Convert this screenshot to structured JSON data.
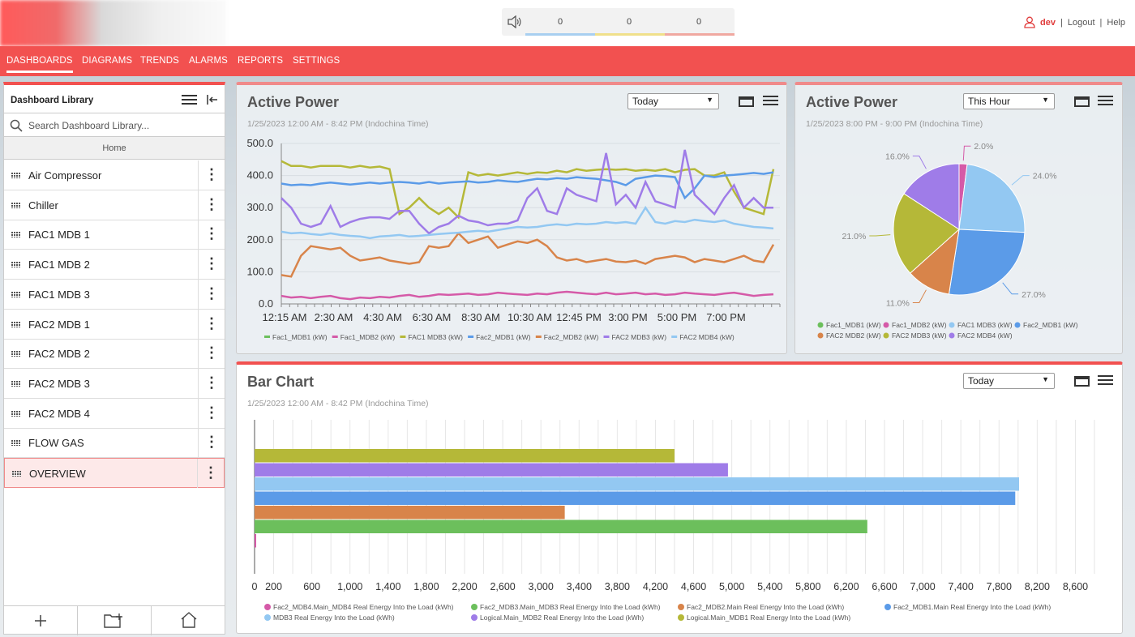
{
  "topbar": {
    "counters": [
      "0",
      "0",
      "0"
    ],
    "counter_colors": [
      "#a8cff0",
      "#f0e08a",
      "#f0a8a0"
    ],
    "user": "dev",
    "logout": "Logout",
    "help": "Help",
    "separator": "|"
  },
  "nav": [
    {
      "label": "DASHBOARDS",
      "active": true
    },
    {
      "label": "DIAGRAMS"
    },
    {
      "label": "TRENDS"
    },
    {
      "label": "ALARMS"
    },
    {
      "label": "REPORTS"
    },
    {
      "label": "SETTINGS"
    }
  ],
  "sidebar": {
    "title": "Dashboard Library",
    "search_placeholder": "Search Dashboard Library...",
    "home": "Home",
    "items": [
      {
        "label": "Air Compressor"
      },
      {
        "label": "Chiller"
      },
      {
        "label": "FAC1 MDB 1"
      },
      {
        "label": "FAC1 MDB 2"
      },
      {
        "label": "FAC1 MDB 3"
      },
      {
        "label": "FAC2 MDB 1"
      },
      {
        "label": "FAC2 MDB 2"
      },
      {
        "label": "FAC2 MDB 3"
      },
      {
        "label": "FAC2 MDB 4"
      },
      {
        "label": "FLOW GAS"
      },
      {
        "label": "OVERVIEW",
        "selected": true
      }
    ]
  },
  "line_panel": {
    "title": "Active Power",
    "subtitle": "1/25/2023 12:00 AM - 8:42 PM (Indochina Time)",
    "range": "Today"
  },
  "pie_panel": {
    "title": "Active Power",
    "subtitle": "1/25/2023 8:00 PM - 9:00 PM (Indochina Time)",
    "range": "This Hour"
  },
  "bar_panel": {
    "title": "Bar Chart",
    "subtitle": "1/25/2023 12:00 AM - 8:42 PM (Indochina Time)",
    "range": "Today"
  },
  "chart_data": [
    {
      "type": "line",
      "x_ticks": [
        "12:15 AM",
        "2:30 AM",
        "4:30 AM",
        "6:30 AM",
        "8:30 AM",
        "10:30 AM",
        "12:45 PM",
        "3:00 PM",
        "5:00 PM",
        "7:00 PM"
      ],
      "y_ticks": [
        "500.0",
        "400.0",
        "300.0",
        "200.0",
        "100.0",
        "0.0"
      ],
      "ylim": [
        0,
        500
      ],
      "legend_placement": "bottom",
      "series": [
        {
          "name": "Fac1_MDB1 (kW)",
          "color": "#6cbf5c",
          "values": []
        },
        {
          "name": "Fac1_MDB2 (kW)",
          "color": "#d55aa8",
          "values": [
            25,
            20,
            22,
            18,
            22,
            25,
            18,
            15,
            20,
            18,
            22,
            20,
            25,
            28,
            22,
            25,
            30,
            28,
            30,
            32,
            28,
            30,
            35,
            32,
            30,
            28,
            32,
            30,
            35,
            38,
            35,
            32,
            30,
            35,
            30,
            32,
            35,
            30,
            32,
            28,
            30,
            35,
            32,
            30,
            28,
            32,
            35,
            30,
            25,
            28,
            30
          ]
        },
        {
          "name": "FAC1 MDB3 (kW)",
          "color": "#b5b838",
          "values": [
            445,
            430,
            430,
            425,
            430,
            430,
            430,
            425,
            430,
            425,
            428,
            420,
            280,
            300,
            330,
            300,
            280,
            300,
            270,
            410,
            400,
            405,
            400,
            405,
            410,
            405,
            410,
            408,
            415,
            410,
            420,
            415,
            418,
            420,
            418,
            420,
            415,
            418,
            415,
            420,
            410,
            418,
            420,
            400,
            400,
            410,
            350,
            300,
            290,
            280,
            420
          ]
        },
        {
          "name": "Fac2_MDB1 (kW)",
          "color": "#5b9be8",
          "values": [
            375,
            370,
            372,
            370,
            375,
            378,
            375,
            372,
            375,
            378,
            375,
            378,
            380,
            378,
            375,
            380,
            375,
            378,
            380,
            382,
            378,
            380,
            385,
            382,
            380,
            385,
            390,
            388,
            392,
            390,
            395,
            392,
            390,
            385,
            380,
            370,
            390,
            395,
            400,
            398,
            395,
            330,
            360,
            400,
            395,
            400,
            402,
            405,
            408,
            405,
            410
          ]
        },
        {
          "name": "Fac2_MDB2 (kW)",
          "color": "#d8844a",
          "values": [
            90,
            85,
            150,
            180,
            175,
            170,
            175,
            150,
            135,
            140,
            145,
            135,
            130,
            125,
            130,
            180,
            175,
            180,
            220,
            190,
            200,
            210,
            175,
            185,
            195,
            190,
            200,
            180,
            145,
            135,
            140,
            130,
            135,
            140,
            132,
            130,
            135,
            125,
            140,
            145,
            150,
            145,
            130,
            140,
            135,
            130,
            140,
            150,
            135,
            130,
            185
          ]
        },
        {
          "name": "FAC2 MDB3 (kW)",
          "color": "#9f7ce8",
          "values": [
            330,
            300,
            250,
            240,
            250,
            305,
            240,
            255,
            265,
            270,
            270,
            265,
            290,
            290,
            250,
            220,
            240,
            250,
            275,
            260,
            255,
            245,
            250,
            250,
            260,
            330,
            360,
            290,
            280,
            360,
            340,
            330,
            320,
            470,
            310,
            340,
            300,
            380,
            320,
            310,
            300,
            480,
            340,
            310,
            280,
            330,
            370,
            300,
            330,
            300,
            300
          ]
        },
        {
          "name": "FAC2 MDB4 (kW)",
          "color": "#93c8f2",
          "values": [
            225,
            220,
            222,
            218,
            215,
            220,
            215,
            212,
            210,
            205,
            210,
            212,
            215,
            210,
            212,
            215,
            218,
            220,
            222,
            225,
            228,
            225,
            230,
            235,
            240,
            238,
            240,
            245,
            248,
            245,
            250,
            248,
            250,
            255,
            252,
            255,
            250,
            300,
            255,
            250,
            258,
            255,
            262,
            258,
            255,
            260,
            250,
            245,
            240,
            238,
            235
          ]
        }
      ]
    },
    {
      "type": "pie",
      "legend_placement": "bottom",
      "slices": [
        {
          "name": "Fac1_MDB1 (kW)",
          "value": 0,
          "label": "",
          "color": "#6cbf5c"
        },
        {
          "name": "Fac1_MDB2 (kW)",
          "value": 2.0,
          "label": "2.0%",
          "color": "#d55aa8"
        },
        {
          "name": "FAC1 MDB3 (kW)",
          "value": 24.0,
          "label": "24.0%",
          "color": "#93c8f2"
        },
        {
          "name": "Fac2_MDB1 (kW)",
          "value": 27.0,
          "label": "27.0%",
          "color": "#5b9be8"
        },
        {
          "name": "FAC2 MDB2 (kW)",
          "value": 11.0,
          "label": "11.0%",
          "color": "#d8844a"
        },
        {
          "name": "FAC2 MDB3 (kW)",
          "value": 21.0,
          "label": "21.0%",
          "color": "#b5b838"
        },
        {
          "name": "FAC2 MDB4 (kW)",
          "value": 16.0,
          "label": "16.0%",
          "color": "#9f7ce8"
        }
      ]
    },
    {
      "type": "bar",
      "orientation": "horizontal",
      "xlim": [
        0,
        8800
      ],
      "x_ticks": [
        "0",
        "200",
        "600",
        "1,000",
        "1,400",
        "1,800",
        "2,200",
        "2,600",
        "3,000",
        "3,400",
        "3,800",
        "4,200",
        "4,600",
        "5,000",
        "5,400",
        "5,800",
        "6,200",
        "6,600",
        "7,000",
        "7,400",
        "7,800",
        "8,200",
        "8,600"
      ],
      "x_tick_values": [
        0,
        200,
        600,
        1000,
        1400,
        1800,
        2200,
        2600,
        3000,
        3400,
        3800,
        4200,
        4600,
        5000,
        5400,
        5800,
        6200,
        6600,
        7000,
        7400,
        7800,
        8200,
        8600
      ],
      "legend_placement": "bottom",
      "series": [
        {
          "name": "Logical.Main_MDB1 Real Energy Into the Load (kWh)",
          "value": 4400,
          "color": "#b5b838"
        },
        {
          "name": "Logical.Main_MDB2 Real Energy Into the Load (kWh)",
          "value": 4960,
          "color": "#9f7ce8"
        },
        {
          "name": "MDB3 Real Energy Into the Load (kWh)",
          "value": 8010,
          "color": "#93c8f2"
        },
        {
          "name": "Fac2_MDB1.Main Real Energy Into the Load (kWh)",
          "value": 7970,
          "color": "#5b9be8"
        },
        {
          "name": "Fac2_MDB2.Main Real Energy Into the Load (kWh)",
          "value": 3250,
          "color": "#d8844a"
        },
        {
          "name": "Fac2_MDB3.Main_MDB3 Real Energy Into the Load (kWh)",
          "value": 6420,
          "color": "#6cbf5c"
        },
        {
          "name": "Fac2_MDB4.Main_MDB4 Real Energy Into the Load (kWh)",
          "value": 15,
          "color": "#d55aa8"
        }
      ]
    }
  ]
}
